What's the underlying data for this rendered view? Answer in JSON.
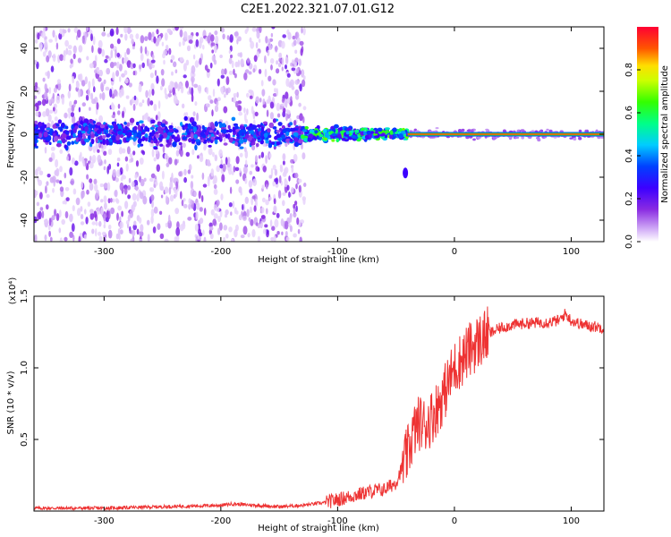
{
  "figure_title": "C2E1.2022.321.07.01.G12",
  "chart_data": [
    {
      "type": "heatmap",
      "title": "C2E1.2022.321.07.01.G12",
      "xlabel": "Height of straight line (km)",
      "ylabel": "Frequency (Hz)",
      "xlim": [
        -360,
        128
      ],
      "ylim": [
        -50,
        50
      ],
      "xticks": [
        -300,
        -200,
        -100,
        0,
        100
      ],
      "yticks": [
        -40,
        -20,
        0,
        20,
        40
      ],
      "xtick_labels": [
        "-300",
        "-200",
        "-100",
        "0",
        "100"
      ],
      "ytick_labels": [
        "-40",
        "-20",
        "0",
        "20",
        "40"
      ],
      "colorbar": {
        "label": "Normalized spectral amplitude",
        "range": [
          0,
          1
        ],
        "ticks": [
          0.0,
          0.2,
          0.4,
          0.6,
          0.8
        ],
        "tick_labels": [
          "0.0",
          "0.2",
          "0.4",
          "0.6",
          "0.8"
        ]
      },
      "features": [
        {
          "name": "broad noise region",
          "x_from": -360,
          "x_to": -128,
          "freq_from": -50,
          "freq_to": 50,
          "amplitude": 0.1
        },
        {
          "name": "signal band",
          "x_from": -360,
          "x_to": -130,
          "freq_center": 0,
          "freq_halfwidth": 8,
          "amplitude": 0.3
        },
        {
          "name": "converging signal",
          "x_from": -130,
          "x_to": -40,
          "freq_center": 0,
          "freq_halfwidth": 5,
          "amplitude": 0.5
        },
        {
          "name": "narrow carrier line",
          "x_from": -40,
          "x_to": 128,
          "freq_center": 0,
          "freq_halfwidth": 1,
          "amplitude": 0.9
        },
        {
          "name": "side blob",
          "x_center": -42,
          "freq_center": -18,
          "amplitude": 0.25
        }
      ]
    },
    {
      "type": "line",
      "xlabel": "Height of straight line (km)",
      "ylabel": "SNR (10 * v/v)",
      "y_scale_label": "(x10⁴)",
      "xlim": [
        -360,
        128
      ],
      "ylim": [
        0,
        1.5
      ],
      "xticks": [
        -300,
        -200,
        -100,
        0,
        100
      ],
      "yticks": [
        0.5,
        1.0,
        1.5
      ],
      "xtick_labels": [
        "-300",
        "-200",
        "-100",
        "0",
        "100"
      ],
      "ytick_labels": [
        "0.5",
        "1.0",
        "1.5"
      ],
      "series": [
        {
          "name": "SNR",
          "color": "#ee3333",
          "x": [
            -360,
            -300,
            -250,
            -200,
            -190,
            -150,
            -130,
            -110,
            -100,
            -90,
            -80,
            -70,
            -60,
            -50,
            -45,
            -40,
            -35,
            -30,
            -25,
            -20,
            -15,
            -10,
            -5,
            0,
            10,
            20,
            30,
            40,
            50,
            60,
            80,
            90,
            95,
            100,
            110,
            128
          ],
          "values": [
            0.02,
            0.02,
            0.03,
            0.04,
            0.05,
            0.03,
            0.04,
            0.06,
            0.08,
            0.1,
            0.12,
            0.14,
            0.15,
            0.2,
            0.3,
            0.4,
            0.55,
            0.62,
            0.6,
            0.65,
            0.72,
            0.8,
            0.9,
            1.0,
            1.1,
            1.18,
            1.24,
            1.28,
            1.3,
            1.31,
            1.32,
            1.33,
            1.38,
            1.33,
            1.3,
            1.28
          ]
        }
      ]
    }
  ]
}
